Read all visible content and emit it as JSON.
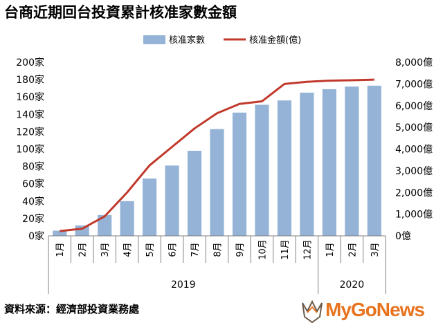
{
  "title": "台商近期回台投資累計核准家數金額",
  "source": "資料來源：經濟部投資業務處",
  "logo": {
    "text": "MyGoNews",
    "icon": "eagle-logo-icon",
    "color": "#e8731e"
  },
  "colors": {
    "bar": "#95b3d7",
    "line": "#c0392b",
    "axis": "#7f7f7f"
  },
  "chart_data": {
    "type": "bar+line",
    "categories": [
      "1月",
      "2月",
      "3月",
      "4月",
      "5月",
      "6月",
      "7月",
      "8月",
      "9月",
      "10月",
      "11月",
      "12月",
      "1月",
      "2月",
      "3月"
    ],
    "year_groups": [
      {
        "label": "2019",
        "start": 0,
        "end": 11
      },
      {
        "label": "2020",
        "start": 12,
        "end": 14
      }
    ],
    "series": [
      {
        "name": "核准家數",
        "type": "bar",
        "axis": "left",
        "values": [
          6,
          12,
          24,
          40,
          66,
          81,
          98,
          123,
          142,
          151,
          156,
          165,
          169,
          172,
          173
        ]
      },
      {
        "name": "核准金額(億)",
        "type": "line",
        "axis": "right",
        "values": [
          220,
          330,
          900,
          2000,
          3250,
          4100,
          4950,
          5650,
          6080,
          6200,
          7000,
          7100,
          7150,
          7170,
          7200
        ]
      }
    ],
    "left_axis": {
      "min": 0,
      "max": 200,
      "step": 20,
      "tick_labels": [
        "0家",
        "20家",
        "40家",
        "60家",
        "80家",
        "100家",
        "120家",
        "140家",
        "160家",
        "180家",
        "200家"
      ]
    },
    "right_axis": {
      "min": 0,
      "max": 8000,
      "step": 1000,
      "tick_labels": [
        "0億",
        "1,000億",
        "2,000億",
        "3,000億",
        "4,000億",
        "5,000億",
        "6,000億",
        "7,000億",
        "8,000億"
      ]
    },
    "legend_position": "top-center",
    "grid": false
  }
}
